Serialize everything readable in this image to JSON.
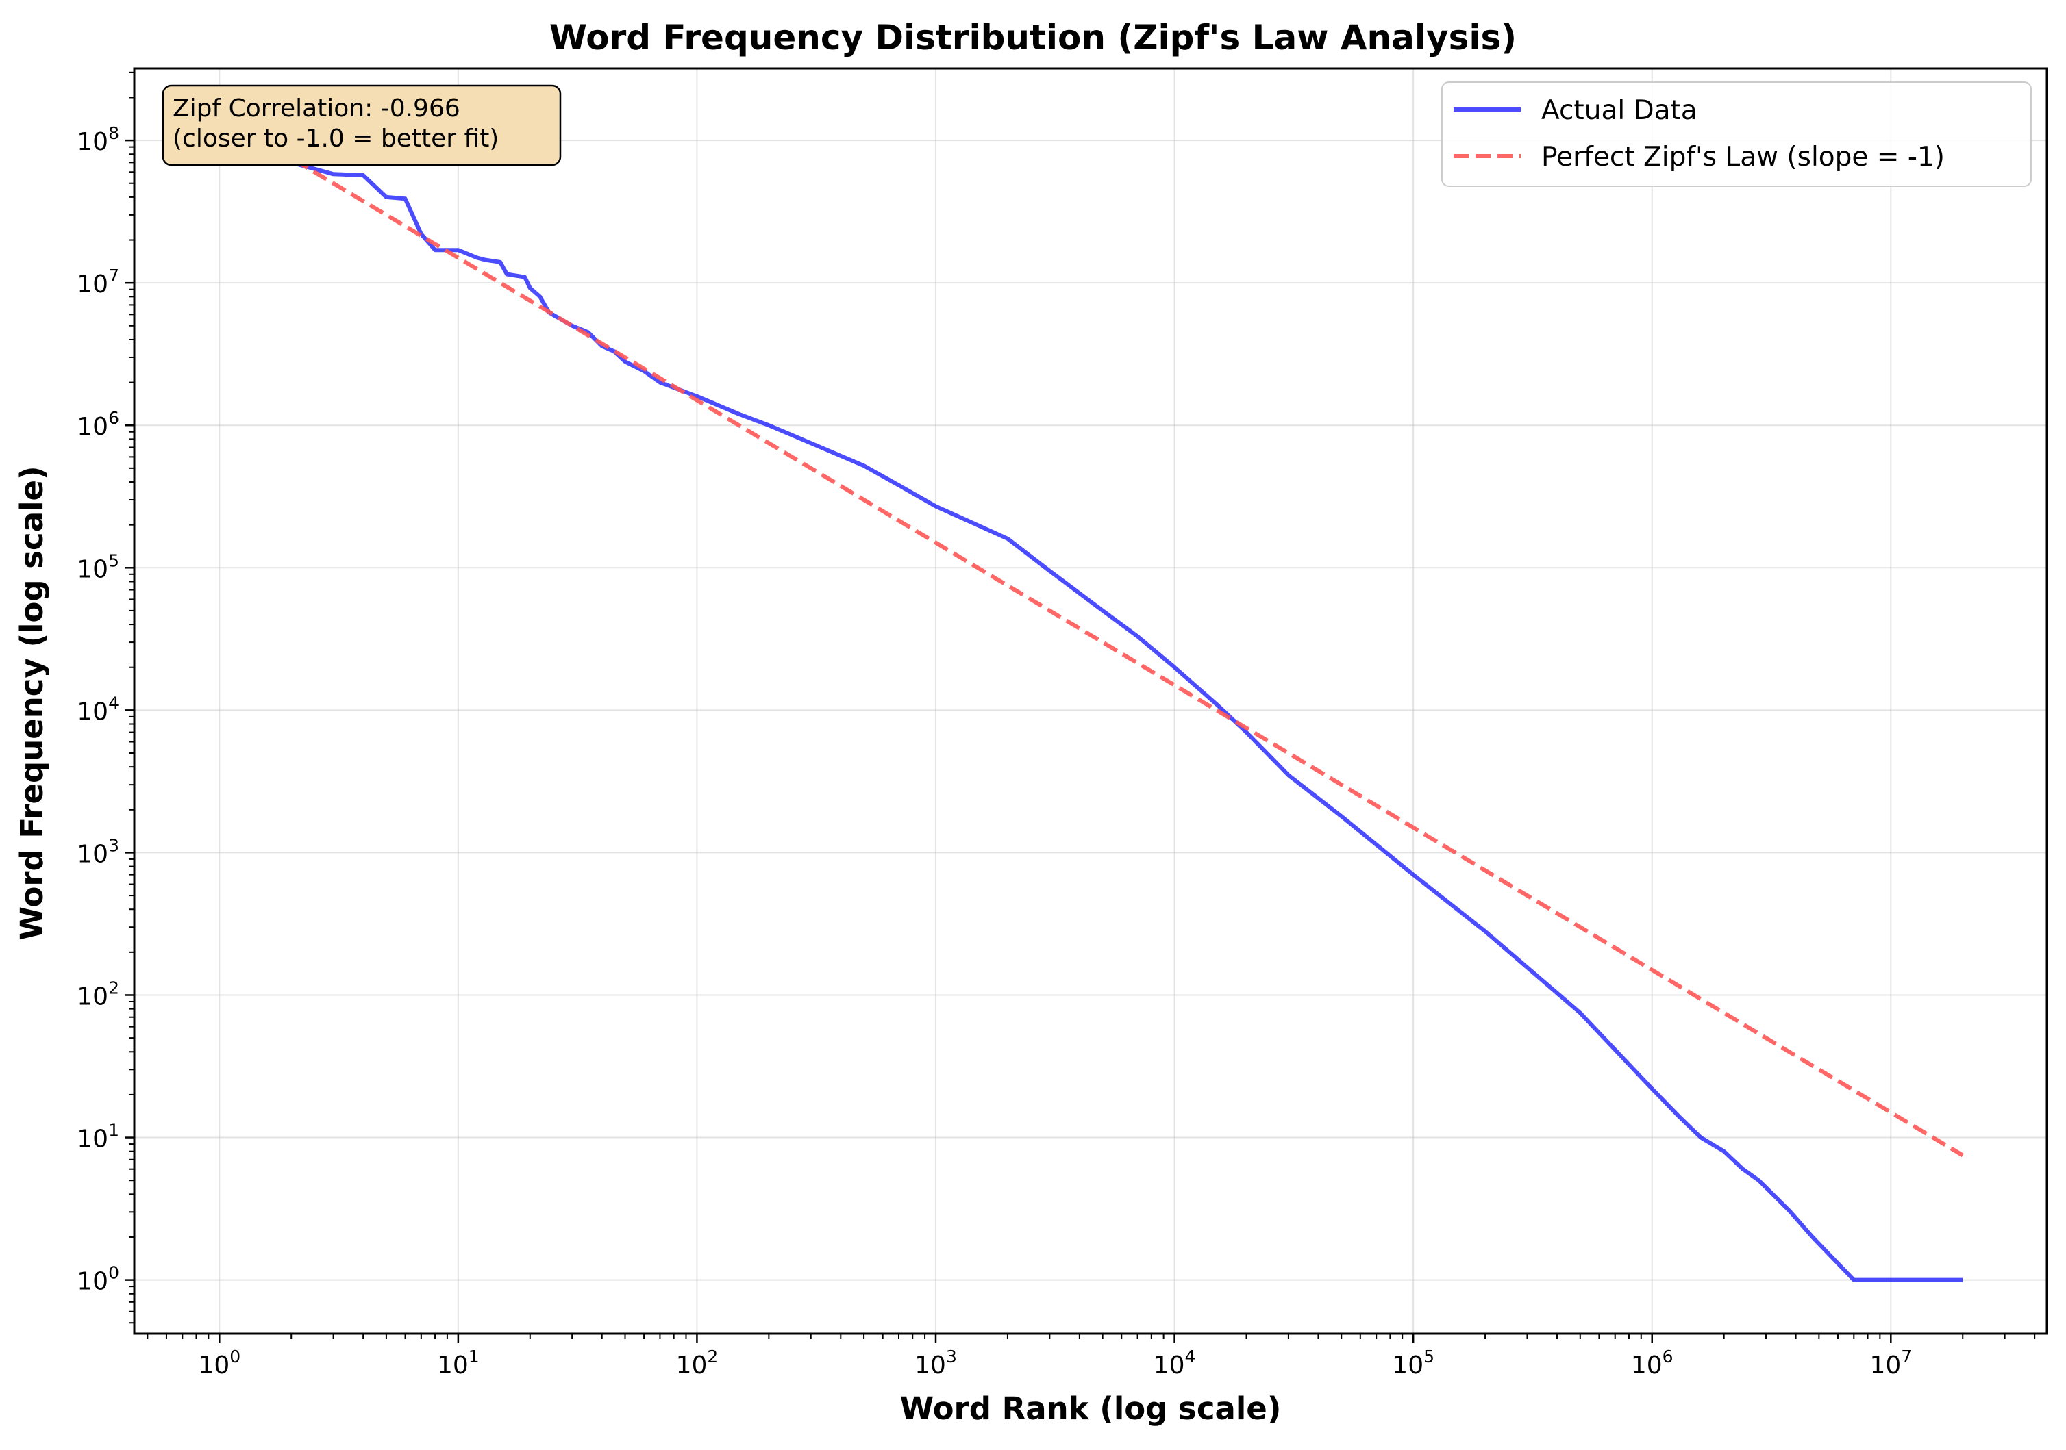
{
  "chart_data": {
    "type": "line",
    "title": "Word Frequency Distribution (Zipf's Law Analysis)",
    "xlabel": "Word Rank (log scale)",
    "ylabel": "Word Frequency (log scale)",
    "x_scale": "log",
    "y_scale": "log",
    "xlim": [
      0.44,
      45000000
    ],
    "ylim": [
      0.42,
      320000000
    ],
    "x_ticks": [
      {
        "base": "10",
        "exp": "0",
        "value": 1
      },
      {
        "base": "10",
        "exp": "1",
        "value": 10
      },
      {
        "base": "10",
        "exp": "2",
        "value": 100
      },
      {
        "base": "10",
        "exp": "3",
        "value": 1000
      },
      {
        "base": "10",
        "exp": "4",
        "value": 10000
      },
      {
        "base": "10",
        "exp": "5",
        "value": 100000
      },
      {
        "base": "10",
        "exp": "6",
        "value": 1000000
      },
      {
        "base": "10",
        "exp": "7",
        "value": 10000000
      }
    ],
    "y_ticks": [
      {
        "base": "10",
        "exp": "0",
        "value": 1
      },
      {
        "base": "10",
        "exp": "1",
        "value": 10
      },
      {
        "base": "10",
        "exp": "2",
        "value": 100
      },
      {
        "base": "10",
        "exp": "3",
        "value": 1000
      },
      {
        "base": "10",
        "exp": "4",
        "value": 10000
      },
      {
        "base": "10",
        "exp": "5",
        "value": 100000
      },
      {
        "base": "10",
        "exp": "6",
        "value": 1000000
      },
      {
        "base": "10",
        "exp": "7",
        "value": 10000000
      },
      {
        "base": "10",
        "exp": "8",
        "value": 100000000
      }
    ],
    "grid": true,
    "legend_position": "top-right",
    "annotation": {
      "line1": "Zipf Correlation: -0.966",
      "line2": "(closer to -1.0 = better fit)",
      "position": "top-left",
      "background": "#f5deb3"
    },
    "series": [
      {
        "name": "Actual Data",
        "color": "#0000ff",
        "style": "solid",
        "x": [
          1,
          2,
          3,
          4,
          5,
          6,
          7,
          8,
          10,
          12,
          13,
          15,
          16,
          19,
          20,
          22,
          24,
          30,
          35,
          40,
          45,
          50,
          60,
          70,
          100,
          150,
          200,
          300,
          500,
          700,
          1000,
          2000,
          3000,
          5000,
          7000,
          10000,
          15000,
          20000,
          30000,
          50000,
          100000,
          200000,
          500000,
          1000000,
          1300000,
          1600000,
          2000000,
          2400000,
          2800000,
          3200000,
          3800000,
          4700000,
          7000000,
          20000000
        ],
        "y": [
          150000000,
          70000000,
          58000000,
          57000000,
          40000000,
          39000000,
          22000000,
          17000000,
          17000000,
          15000000,
          14500000,
          14000000,
          11500000,
          11000000,
          9200000,
          8000000,
          6200000,
          5000000,
          4500000,
          3600000,
          3300000,
          2800000,
          2400000,
          2000000,
          1600000,
          1200000,
          1000000,
          750000,
          520000,
          380000,
          270000,
          160000,
          95000,
          50000,
          33000,
          20000,
          11000,
          7000,
          3500,
          1800,
          700,
          280,
          75,
          22,
          14,
          10,
          8,
          6,
          5,
          4,
          3,
          2,
          1,
          1
        ]
      },
      {
        "name": "Perfect Zipf's Law (slope = -1)",
        "color": "#ff5555",
        "style": "dashed",
        "x": [
          1,
          20000000
        ],
        "y": [
          150000000,
          7.5
        ]
      }
    ]
  }
}
